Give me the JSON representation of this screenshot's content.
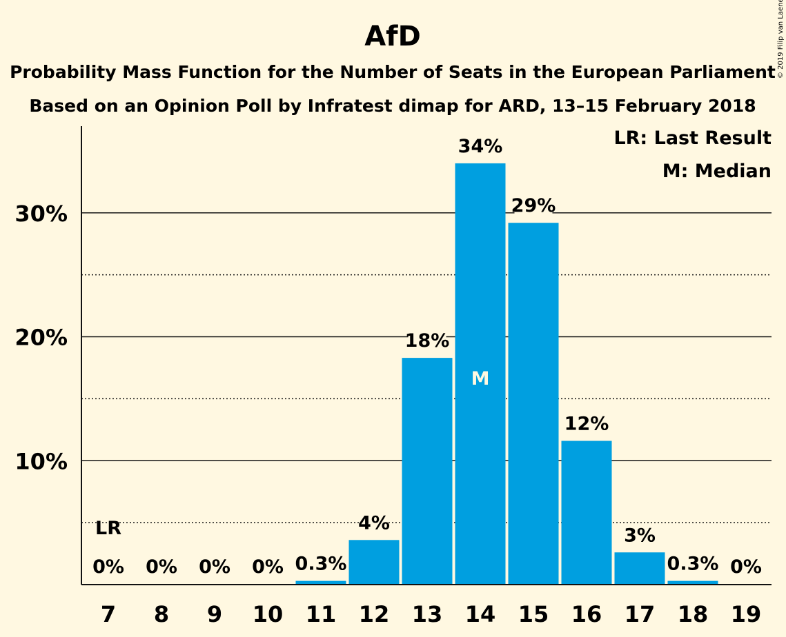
{
  "chart_data": {
    "type": "bar",
    "title": "AfD",
    "subtitle_1": "Probability Mass Function for the Number of Seats in the European Parliament",
    "subtitle_2": "Based on an Opinion Poll by Infratest dimap for ARD, 13–15 February 2018",
    "credit": "© 2019 Filip van Laenen",
    "categories": [
      "7",
      "8",
      "9",
      "10",
      "11",
      "12",
      "13",
      "14",
      "15",
      "16",
      "17",
      "18",
      "19"
    ],
    "values": [
      0,
      0,
      0,
      0,
      0.3,
      3.6,
      18.3,
      34.0,
      29.2,
      11.6,
      2.6,
      0.3,
      0
    ],
    "value_labels": [
      "0%",
      "0%",
      "0%",
      "0%",
      "0.3%",
      "4%",
      "18%",
      "34%",
      "29%",
      "12%",
      "3%",
      "0.3%",
      "0%"
    ],
    "ylim": [
      0,
      37
    ],
    "yticks": [
      10,
      20,
      30
    ],
    "ytick_labels": [
      "10%",
      "20%",
      "30%"
    ],
    "minor_gridlines": [
      5,
      15,
      25
    ],
    "median_category": "14",
    "median_marker": "M",
    "last_result_category": "7",
    "last_result_marker": "LR",
    "last_result_value": 5,
    "legend": [
      "LR: Last Result",
      "M: Median"
    ],
    "legend_position": "top-right",
    "bar_color": "#009FE0",
    "background_color": "#FFF8E1",
    "xlabel": "",
    "ylabel": ""
  }
}
